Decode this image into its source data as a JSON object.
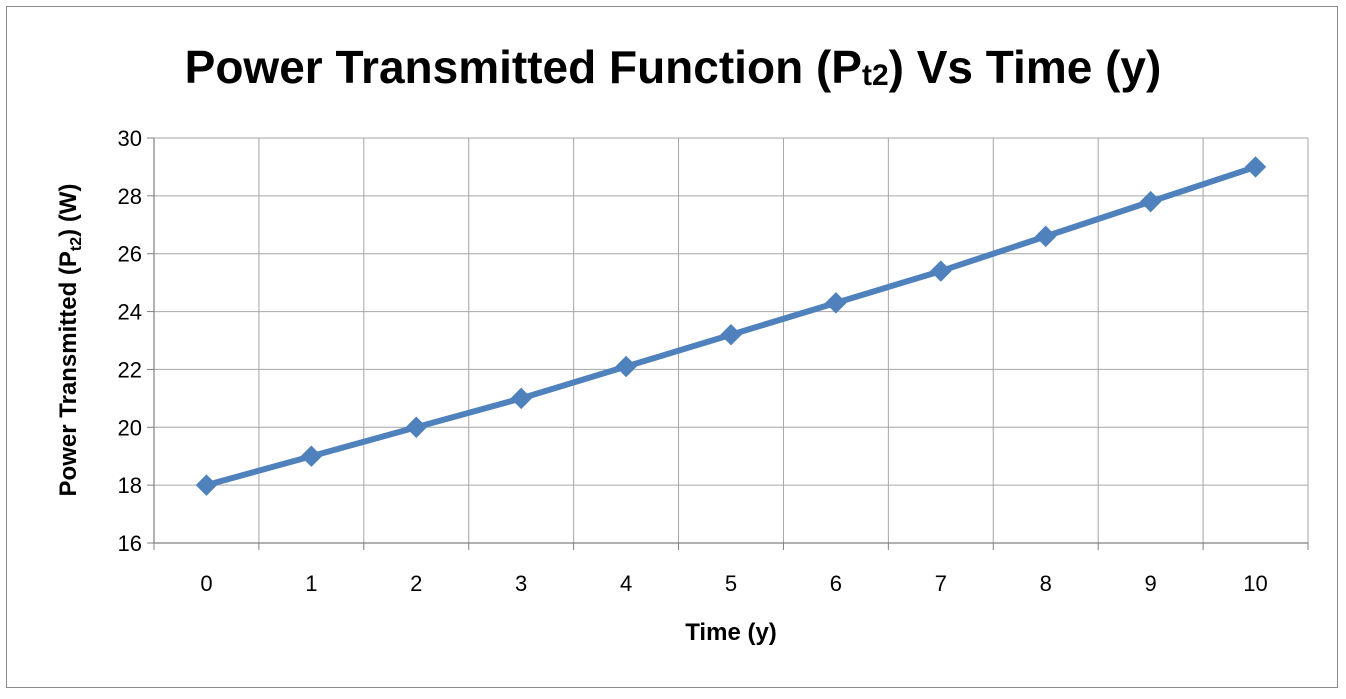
{
  "chart_data": {
    "type": "line",
    "title": {
      "main": "Power Transmitted Function (P",
      "sub": "t2",
      "rest": ") Vs Time (y)"
    },
    "xlabel": "Time (y)",
    "ylabel": {
      "main": "Power Transmitted (P",
      "sub": "t2",
      "rest": ") (W)"
    },
    "x": [
      0,
      1,
      2,
      3,
      4,
      5,
      6,
      7,
      8,
      9,
      10
    ],
    "series": [
      {
        "values": [
          18.0,
          19.0,
          20.0,
          21.0,
          22.1,
          23.2,
          24.3,
          25.4,
          26.6,
          27.8,
          29.0
        ],
        "color": "#4f81bd",
        "marker": "diamond"
      }
    ],
    "ylim": [
      16,
      30
    ],
    "yticks": [
      16,
      18,
      20,
      22,
      24,
      26,
      28,
      30
    ],
    "grid": true,
    "legend": "none",
    "colors": {
      "grid": "#a6a6a6",
      "axis": "#808080",
      "line": "#4f81bd"
    }
  }
}
